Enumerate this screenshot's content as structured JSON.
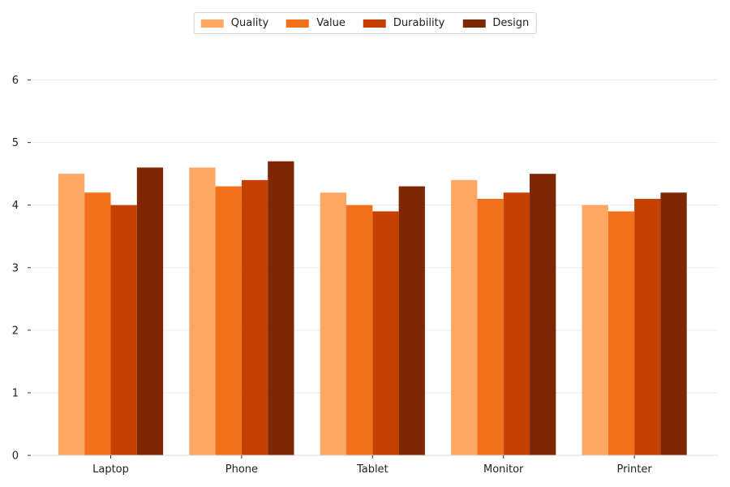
{
  "chart_data": {
    "type": "bar",
    "categories": [
      "Laptop",
      "Phone",
      "Tablet",
      "Monitor",
      "Printer"
    ],
    "series": [
      {
        "name": "Quality",
        "color": "#fda762",
        "values": [
          4.5,
          4.6,
          4.2,
          4.4,
          4.0
        ]
      },
      {
        "name": "Value",
        "color": "#f3701b",
        "values": [
          4.2,
          4.3,
          4.0,
          4.1,
          3.9
        ]
      },
      {
        "name": "Durability",
        "color": "#c54102",
        "values": [
          4.0,
          4.4,
          3.9,
          4.2,
          4.1
        ]
      },
      {
        "name": "Design",
        "color": "#7f2704",
        "values": [
          4.6,
          4.7,
          4.3,
          4.5,
          4.2
        ]
      }
    ],
    "ylim": [
      0,
      6.5
    ],
    "yticks": [
      "0",
      "1",
      "2",
      "3",
      "4",
      "5",
      "6"
    ],
    "grid": "horizontal",
    "legend_position": "top-center",
    "title": "",
    "xlabel": "",
    "ylabel": ""
  }
}
